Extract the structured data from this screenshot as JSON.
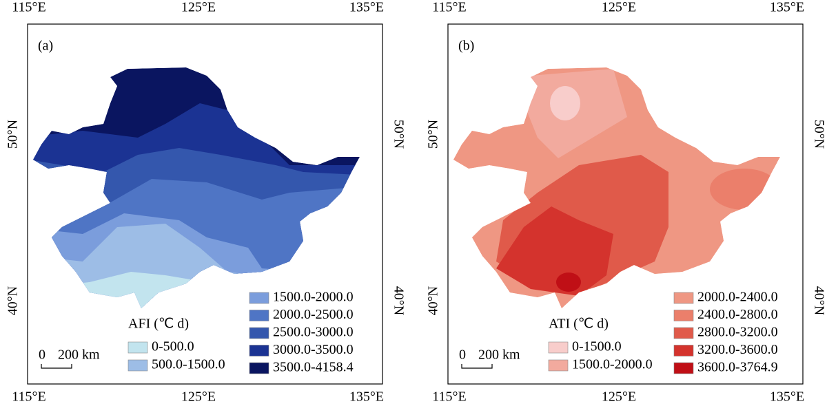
{
  "lon_labels": [
    "115°E",
    "125°E",
    "135°E"
  ],
  "lat_labels": [
    "50°N",
    "40°N"
  ],
  "panels": [
    {
      "label": "(a)",
      "legend_title": "AFI (℃ d)",
      "legend_items": [
        {
          "label": "0-500.0",
          "color": "#c2e4ee"
        },
        {
          "label": "500.0-1500.0",
          "color": "#9dbde6"
        },
        {
          "label": "1500.0-2000.0",
          "color": "#7b9ddc"
        },
        {
          "label": "2000.0-2500.0",
          "color": "#4f75c5"
        },
        {
          "label": "2500.0-3000.0",
          "color": "#3457ad"
        },
        {
          "label": "3000.0-3500.0",
          "color": "#1b3393"
        },
        {
          "label": "3500.0-4158.4",
          "color": "#0a1560"
        }
      ],
      "scale_bar": {
        "zero": "0",
        "label": "200 km"
      }
    },
    {
      "label": "(b)",
      "legend_title": "ATI (℃ d)",
      "legend_items": [
        {
          "label": "0-1500.0",
          "color": "#f8cdcb"
        },
        {
          "label": "1500.0-2000.0",
          "color": "#f2aa9e"
        },
        {
          "label": "2000.0-2400.0",
          "color": "#ef9783"
        },
        {
          "label": "2400.0-2800.0",
          "color": "#eb7f6b"
        },
        {
          "label": "2800.0-3200.0",
          "color": "#e05a4a"
        },
        {
          "label": "3200.0-3600.0",
          "color": "#d4332d"
        },
        {
          "label": "3600.0-3764.9",
          "color": "#c00f16"
        }
      ],
      "scale_bar": {
        "zero": "0",
        "label": "200 km"
      }
    }
  ]
}
